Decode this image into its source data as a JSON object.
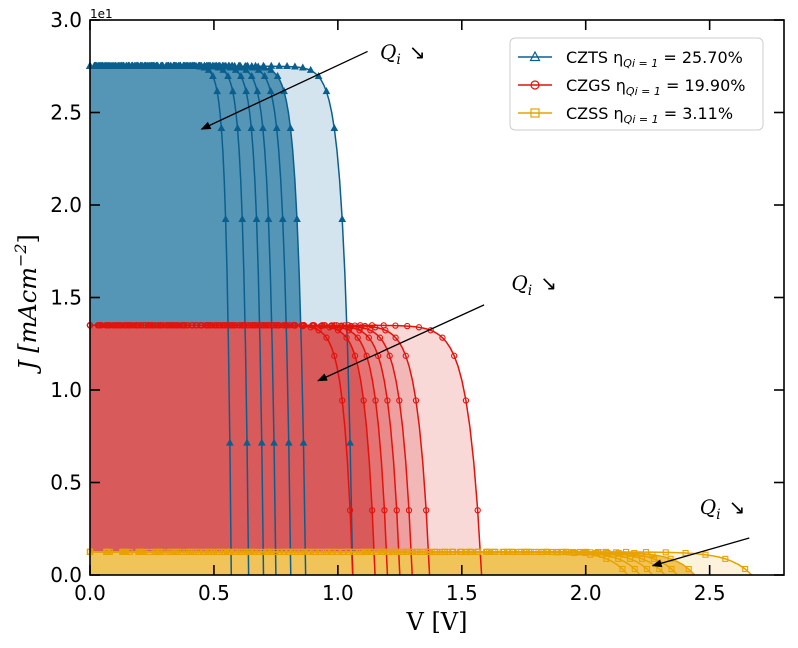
{
  "chart_data": {
    "type": "line",
    "xlabel": "V [V]",
    "ylabel_main": "J [mAcm",
    "ylabel_sup": "−2",
    "ylabel_close": "]",
    "offset_text": "1e1",
    "xlim": [
      0.0,
      2.8
    ],
    "ylim": [
      0.0,
      3.0
    ],
    "xticks": [
      0.0,
      0.5,
      1.0,
      1.5,
      2.0,
      2.5
    ],
    "xtick_labels": [
      "0.0",
      "0.5",
      "1.0",
      "1.5",
      "2.0",
      "2.5"
    ],
    "yticks": [
      0.0,
      0.5,
      1.0,
      1.5,
      2.0,
      2.5,
      3.0
    ],
    "ytick_labels": [
      "0.0",
      "0.5",
      "1.0",
      "1.5",
      "2.0",
      "2.5",
      "3.0"
    ],
    "legend_position": "upper-right",
    "series": [
      {
        "name": "CZTS η",
        "eff_sub": "Qi = 1",
        "eff_value": " = 25.70%",
        "color": "#0b5f8e",
        "marker": "triangle",
        "jsc": 2.75,
        "voc": [
          0.57,
          0.64,
          0.7,
          0.75,
          0.81,
          0.87,
          1.06
        ],
        "fill_colors": [
          "#5596b7",
          "#5596b7",
          "#5596b7",
          "#5596b7",
          "#5596b7",
          "#5596b7",
          "#d3e4ee"
        ]
      },
      {
        "name": "CZGS η",
        "eff_sub": "Qi = 1",
        "eff_value": " = 19.90%",
        "color": "#e3120b",
        "marker": "circle",
        "jsc": 1.35,
        "voc": [
          1.06,
          1.15,
          1.2,
          1.25,
          1.3,
          1.37,
          1.58
        ],
        "fill_colors": [
          "#d95a5a",
          "#d95a5a",
          "#e57373",
          "#e98a8a",
          "#eea0a0",
          "#f2b8b8",
          "#f9d8d8"
        ]
      },
      {
        "name": "CZSS η",
        "eff_sub": "Qi = 1",
        "eff_value": " = 3.11%",
        "color": "#e8a200",
        "marker": "square",
        "jsc": 0.125,
        "voc": [
          2.17,
          2.22,
          2.27,
          2.32,
          2.37,
          2.44,
          2.67
        ],
        "fill_colors": [
          "#f0c458",
          "#f0c458",
          "#f0c458",
          "#f0c458",
          "#f0c458",
          "#f0c458",
          "#fdf3dc"
        ]
      }
    ],
    "annotations": [
      {
        "text": "Q",
        "sub": "i",
        "arrow_glyph": "↘",
        "text_x": 1.17,
        "text_y": 2.79,
        "from_x": 1.12,
        "from_y": 2.83,
        "to_x": 0.45,
        "to_y": 2.41
      },
      {
        "text": "Q",
        "sub": "i",
        "arrow_glyph": "↘",
        "text_x": 1.7,
        "text_y": 1.54,
        "from_x": 1.59,
        "from_y": 1.46,
        "to_x": 0.92,
        "to_y": 1.05
      },
      {
        "text": "Q",
        "sub": "i",
        "arrow_glyph": "↘",
        "text_x": 2.46,
        "text_y": 0.33,
        "from_x": 2.66,
        "from_y": 0.2,
        "to_x": 2.27,
        "to_y": 0.05
      }
    ]
  }
}
